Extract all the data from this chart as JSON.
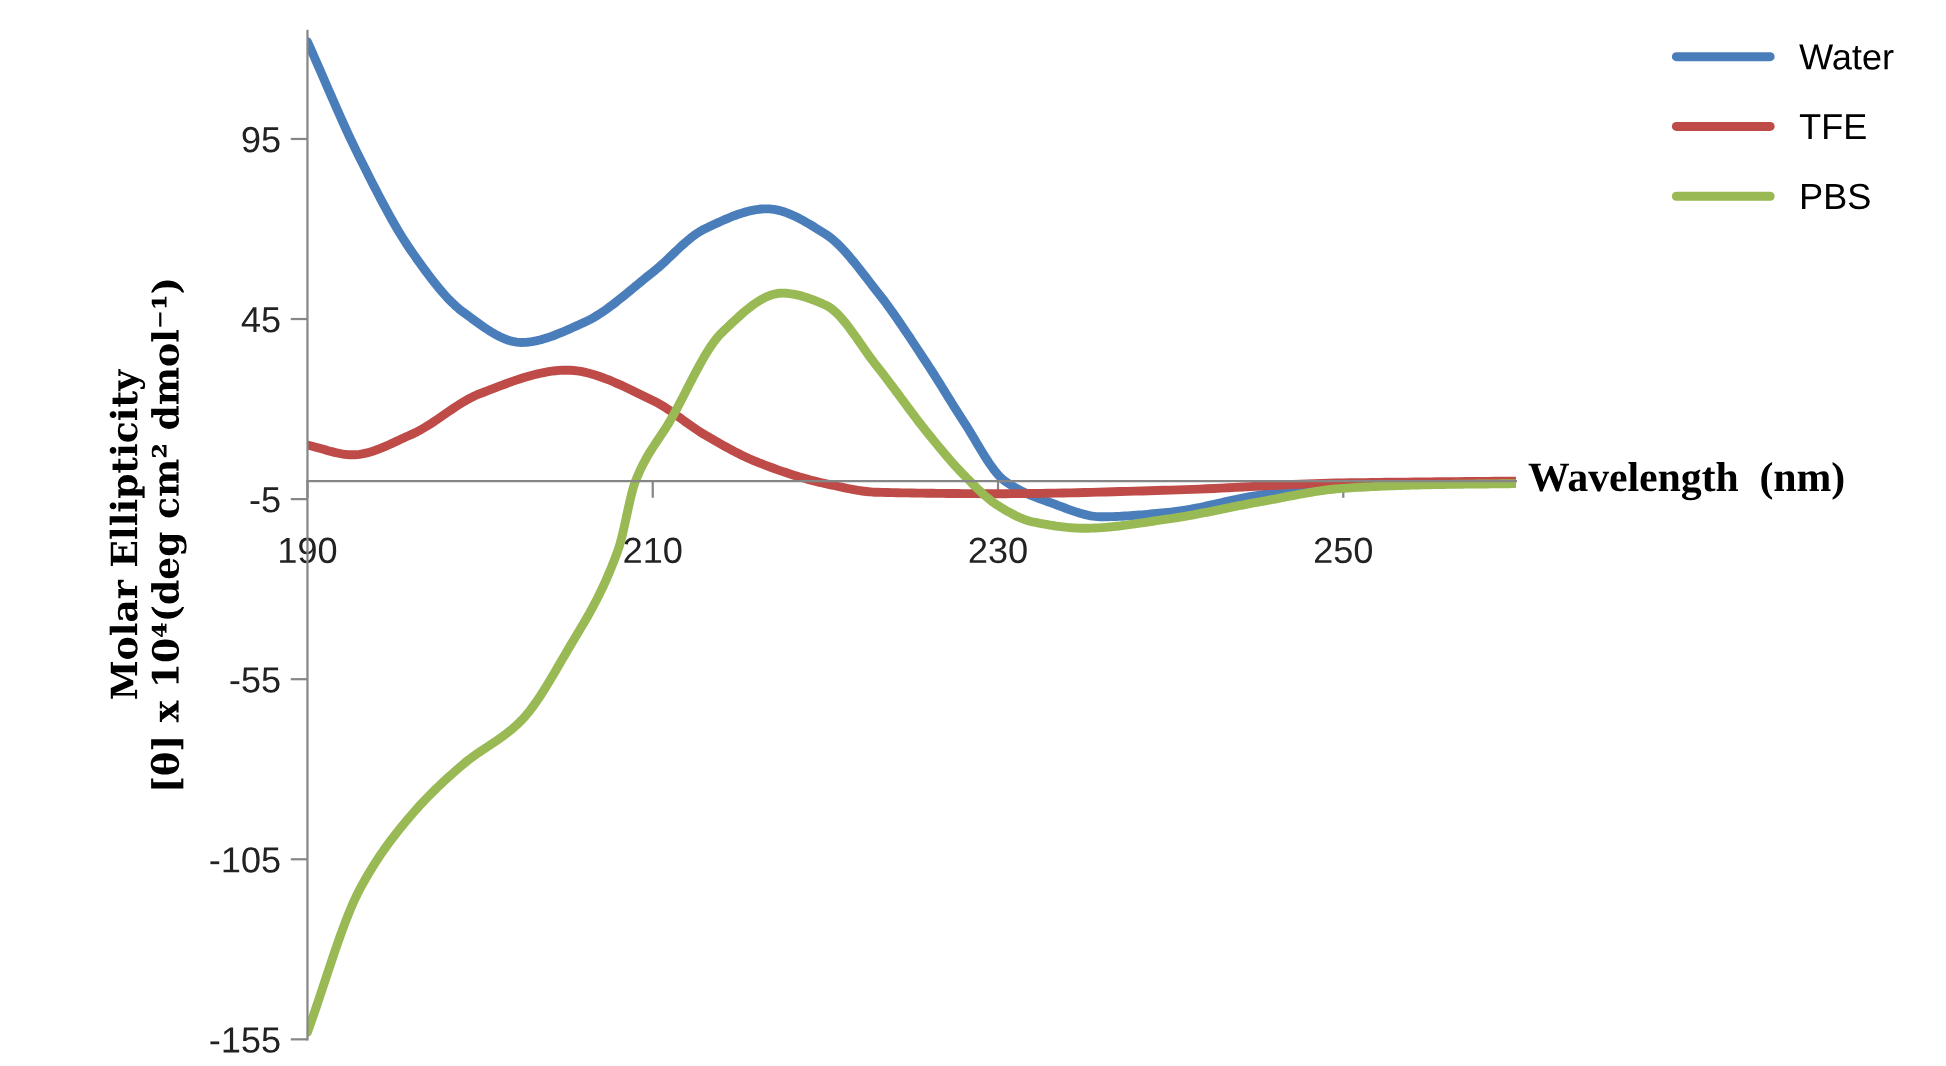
{
  "chart_data": {
    "type": "line",
    "xlabel": "Wavelength  (nm)",
    "ylabel": "Molar Ellipticity\n[θ] x 10⁴(deg cm² dmol⁻¹)",
    "x": [
      190,
      192.6,
      193,
      196,
      199,
      200,
      202.4,
      205,
      206,
      208,
      209,
      210,
      211,
      213,
      214,
      216,
      216.6,
      217.5,
      220,
      223,
      226,
      228,
      230,
      230.4,
      232,
      233,
      235,
      236,
      240,
      245,
      250,
      255,
      260
    ],
    "series": [
      {
        "name": "Water",
        "color": "#4a7ebb",
        "values": [
          122,
          null,
          90,
          64,
          47,
          null,
          38.5,
          null,
          44,
          null,
          null,
          58,
          null,
          70,
          null,
          null,
          75.6,
          null,
          68.6,
          52.6,
          31.8,
          16.6,
          null,
          0,
          null,
          -5.9,
          null,
          -9.9,
          -8.6,
          -4,
          -1,
          -0.5,
          -0.5
        ]
      },
      {
        "name": "TFE",
        "color": "#be4b48",
        "values": [
          10,
          7.3,
          null,
          12.9,
          null,
          24.3,
          null,
          30.8,
          null,
          null,
          null,
          22.4,
          null,
          12.9,
          null,
          5.4,
          null,
          null,
          -0.7,
          -3.1,
          null,
          null,
          -3.5,
          null,
          null,
          null,
          null,
          null,
          -2.5,
          null,
          -0.5,
          null,
          0
        ]
      },
      {
        "name": "PBS",
        "color": "#98b954",
        "values": [
          -153,
          null,
          -113.6,
          -92.8,
          -78.7,
          null,
          -66.4,
          -47.5,
          null,
          -19,
          0,
          null,
          16.7,
          null,
          41.2,
          null,
          null,
          52.2,
          48.9,
          31.8,
          12.9,
          1.8,
          -6.8,
          null,
          -11.3,
          null,
          -13.1,
          null,
          -10.4,
          -5.9,
          -2,
          -1,
          -0.7
        ]
      }
    ],
    "xlim": [
      190,
      260
    ],
    "xticks": [
      190,
      210,
      230,
      250
    ],
    "ylim": [
      -155,
      125
    ],
    "yticks": [
      -155,
      -105,
      -55,
      -5,
      45,
      95
    ],
    "legend": "top right",
    "grid": false,
    "marker": "none",
    "line_style": "solid"
  }
}
